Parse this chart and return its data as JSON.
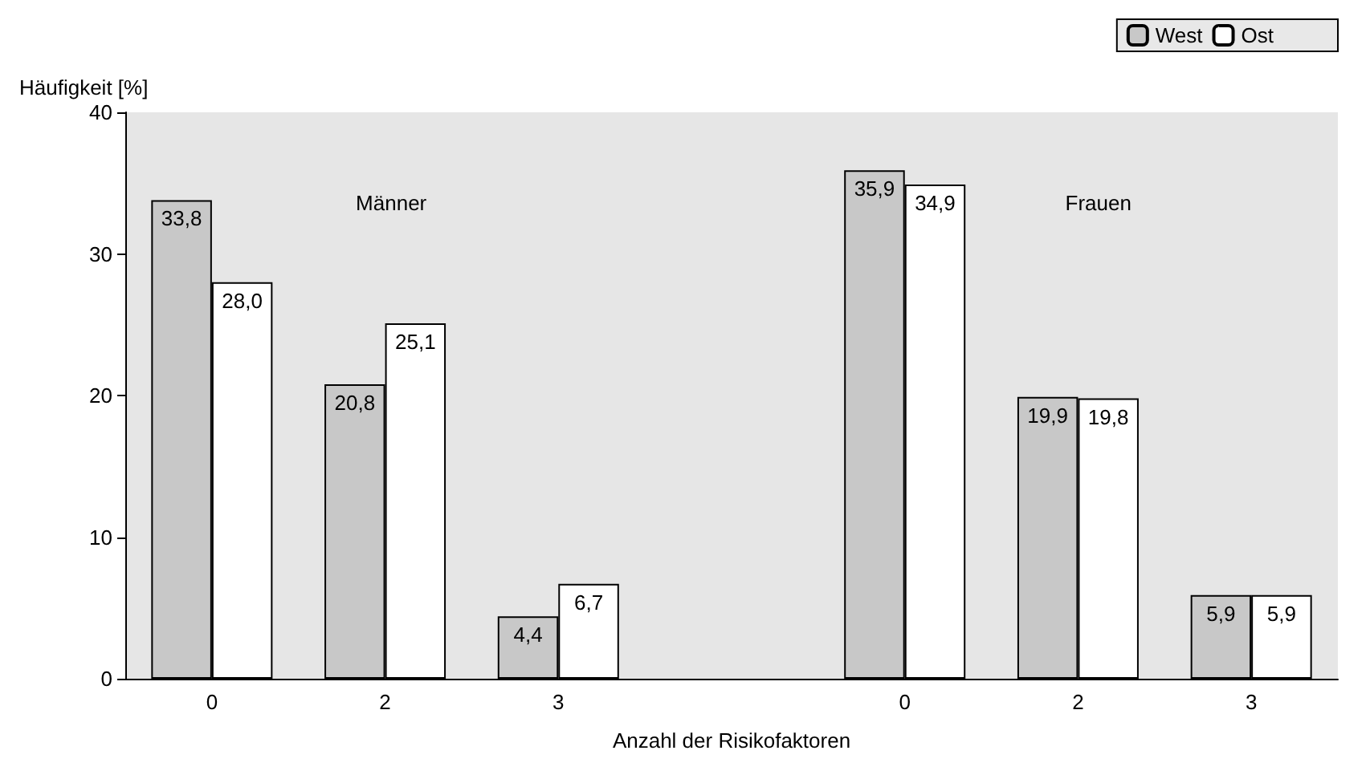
{
  "chart_data": {
    "type": "bar",
    "ylabel": "Häufigkeit [%]",
    "xlabel": "Anzahl der Risikofaktoren",
    "categories": [
      "0",
      "2",
      "3",
      null,
      "0",
      "2",
      "3"
    ],
    "series": [
      {
        "name": "West",
        "color": "#c8c8c8",
        "values": [
          33.8,
          20.8,
          4.4,
          null,
          35.9,
          19.9,
          5.9
        ],
        "value_labels": [
          "33,8",
          "20,8",
          "4,4",
          null,
          "35,9",
          "19,9",
          "5,9"
        ]
      },
      {
        "name": "Ost",
        "color": "#ffffff",
        "values": [
          28.0,
          25.1,
          6.7,
          null,
          34.9,
          19.8,
          5.9
        ],
        "value_labels": [
          "28,0",
          "25,1",
          "6,7",
          null,
          "34,9",
          "19,8",
          "5,9"
        ]
      }
    ],
    "annotations": [
      "Männer",
      "Frauen"
    ],
    "ylim": [
      0,
      40
    ],
    "yticks": [
      0,
      10,
      20,
      30,
      40
    ],
    "grid": false,
    "legend": "top right"
  }
}
